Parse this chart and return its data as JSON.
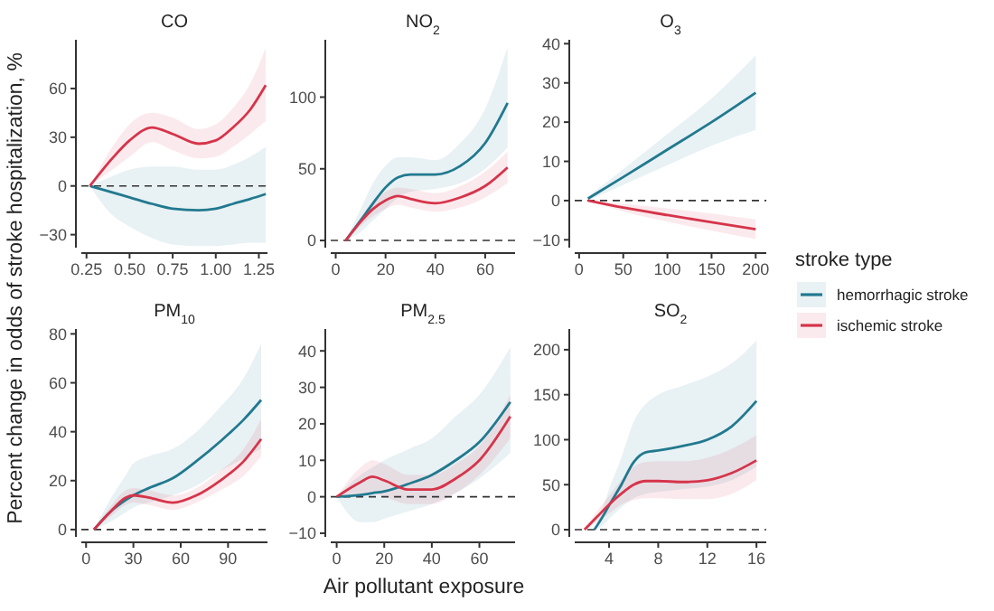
{
  "chart_data": [
    {
      "type": "line",
      "title": "CO",
      "x": [
        0.27,
        0.4,
        0.5,
        0.63,
        0.75,
        0.9,
        1.0,
        1.1,
        1.2,
        1.29
      ],
      "xlim": [
        0.22,
        1.3
      ],
      "ylim": [
        -38,
        90
      ],
      "xticks": [
        {
          "value": 0.25,
          "label": "0.25"
        },
        {
          "value": 0.5,
          "label": "0.50"
        },
        {
          "value": 0.75,
          "label": "0.75"
        },
        {
          "value": 1,
          "label": "1.00"
        },
        {
          "value": 1.25,
          "label": "1.25"
        }
      ],
      "yticks": [
        -30,
        0,
        30,
        60
      ],
      "ref_lines": [
        {
          "axis": "y",
          "value": 0,
          "color": "#333333",
          "line_style": "dashed"
        }
      ],
      "series": [
        {
          "color": "#21798f",
          "values": [
            0,
            -4,
            -7,
            -11,
            -14,
            -15,
            -14,
            -11,
            -8,
            -5
          ],
          "lower": [
            0,
            -18,
            -25,
            -32,
            -36,
            -37,
            -37,
            -36,
            -35,
            -35
          ],
          "upper": [
            0,
            6,
            10,
            12,
            12,
            10,
            10,
            13,
            18,
            24
          ]
        },
        {
          "color": "#d6344a",
          "values": [
            0,
            17,
            28,
            36,
            32,
            26,
            28,
            36,
            47,
            62
          ],
          "lower": [
            0,
            10,
            18,
            27,
            22,
            17,
            18,
            24,
            32,
            40
          ],
          "upper": [
            0,
            24,
            38,
            45,
            42,
            35,
            38,
            48,
            63,
            85
          ]
        }
      ]
    },
    {
      "type": "line",
      "title": "NO$_{2}$",
      "x": [
        4,
        10,
        15,
        20,
        25,
        30,
        40,
        50,
        60,
        69
      ],
      "xlim": [
        -2,
        72
      ],
      "ylim": [
        -5,
        140
      ],
      "xticks": [
        0,
        20,
        40,
        60
      ],
      "yticks": [
        0,
        50,
        100
      ],
      "ref_lines": [
        {
          "axis": "y",
          "value": 0,
          "color": "#333333",
          "line_style": "dashed"
        }
      ],
      "series": [
        {
          "color": "#21798f",
          "values": [
            0,
            14,
            26,
            37,
            44,
            46,
            46,
            52,
            68,
            96
          ],
          "lower": [
            0,
            6,
            14,
            22,
            30,
            34,
            36,
            40,
            50,
            65
          ],
          "upper": [
            0,
            22,
            40,
            52,
            58,
            58,
            56,
            68,
            92,
            135
          ]
        },
        {
          "color": "#d6344a",
          "values": [
            0,
            13,
            22,
            28,
            31,
            29,
            26,
            30,
            38,
            51
          ],
          "lower": [
            0,
            10,
            17,
            22,
            25,
            23,
            20,
            23,
            30,
            40
          ],
          "upper": [
            0,
            16,
            27,
            34,
            37,
            36,
            33,
            38,
            48,
            62
          ]
        }
      ]
    },
    {
      "type": "line",
      "title": "O$_{3}$",
      "x": [
        10,
        50,
        100,
        150,
        200
      ],
      "xlim": [
        -5,
        212
      ],
      "ylim": [
        -12,
        41
      ],
      "xticks": [
        0,
        50,
        100,
        150,
        200
      ],
      "yticks": [
        -10,
        0,
        10,
        20,
        30,
        40
      ],
      "ref_lines": [
        {
          "axis": "y",
          "value": 0,
          "color": "#333333",
          "line_style": "dashed"
        }
      ],
      "legend": "right",
      "legend_title": "stroke type",
      "series": [
        {
          "name": "hemorrhagic stroke",
          "color": "#21798f",
          "values": [
            0.5,
            6,
            13,
            20,
            27.5
          ],
          "lower": [
            0,
            4,
            9,
            14,
            18
          ],
          "upper": [
            1,
            8,
            17,
            26,
            37
          ]
        },
        {
          "name": "ischemic stroke",
          "color": "#d6344a",
          "values": [
            0,
            -1.8,
            -3.7,
            -5.5,
            -7.3
          ],
          "lower": [
            0,
            -2.8,
            -5.4,
            -7.7,
            -9.8
          ],
          "upper": [
            0,
            -0.8,
            -2,
            -3.3,
            -4.8
          ]
        }
      ]
    },
    {
      "type": "line",
      "title": "PM$_{10}$",
      "ylabel": "Percent change in odds of stroke hospitalization, %",
      "x": [
        5,
        15,
        25,
        30,
        40,
        55,
        70,
        85,
        100,
        111
      ],
      "xlim": [
        -3,
        115
      ],
      "ylim": [
        -3,
        82
      ],
      "xticks": [
        0,
        30,
        60,
        90
      ],
      "yticks": [
        0,
        20,
        40,
        60,
        80
      ],
      "ref_lines": [
        {
          "axis": "y",
          "value": 0,
          "color": "#333333",
          "line_style": "dashed"
        }
      ],
      "series": [
        {
          "color": "#21798f",
          "values": [
            0,
            7,
            12,
            14,
            17,
            21,
            28,
            36,
            45,
            53
          ],
          "lower": [
            0,
            3,
            7,
            9,
            11,
            14,
            18,
            24,
            29,
            33
          ],
          "upper": [
            0,
            12,
            22,
            27,
            30,
            33,
            40,
            50,
            62,
            76
          ]
        },
        {
          "color": "#d6344a",
          "values": [
            0,
            7,
            13,
            14,
            13,
            11,
            14,
            20,
            28,
            37
          ],
          "lower": [
            0,
            5,
            10,
            11,
            10,
            8,
            11,
            16,
            22,
            30
          ],
          "upper": [
            0,
            9,
            16,
            17,
            16,
            14,
            17,
            24,
            33,
            45
          ]
        }
      ]
    },
    {
      "type": "line",
      "title": "PM$_{2.5}$",
      "xlabel": "Air pollutant exposure",
      "x": [
        0,
        10,
        15,
        20,
        30,
        40,
        50,
        60,
        73
      ],
      "xlim": [
        -2.5,
        75
      ],
      "ylim": [
        -11,
        46
      ],
      "xticks": [
        0,
        20,
        40,
        60
      ],
      "yticks": [
        -10,
        0,
        10,
        20,
        30,
        40
      ],
      "ref_lines": [
        {
          "axis": "y",
          "value": 0,
          "color": "#333333",
          "line_style": "dashed"
        }
      ],
      "series": [
        {
          "color": "#21798f",
          "values": [
            0,
            0.5,
            1,
            1.5,
            3.5,
            6,
            10,
            15,
            26
          ],
          "lower": [
            0,
            -7,
            -7,
            -6,
            -4,
            -2,
            1,
            5,
            12
          ],
          "upper": [
            0,
            6,
            8,
            10,
            13,
            16,
            22,
            28,
            41
          ]
        },
        {
          "color": "#d6344a",
          "values": [
            0,
            4,
            5.5,
            4.5,
            2,
            2,
            5,
            10,
            22
          ],
          "lower": [
            0,
            0,
            1,
            0,
            -2,
            -2,
            1,
            6,
            16
          ],
          "upper": [
            0,
            8,
            10,
            9,
            6,
            6,
            9,
            14,
            28
          ]
        }
      ]
    },
    {
      "type": "line",
      "title": "SO$_{2}$",
      "xlim": [
        1.2,
        16.8
      ],
      "ylim": [
        -8,
        223
      ],
      "xticks": [
        4,
        8,
        12,
        16
      ],
      "yticks": [
        0,
        50,
        100,
        150,
        200
      ],
      "ref_lines": [
        {
          "axis": "y",
          "value": 0,
          "color": "#333333",
          "line_style": "dashed"
        }
      ],
      "series": [
        {
          "color": "#21798f",
          "x": [
            2.8,
            3.5,
            4,
            5,
            6,
            7,
            8,
            10,
            12,
            14,
            16
          ],
          "values": [
            0,
            15,
            27,
            50,
            75,
            86,
            88,
            93,
            100,
            115,
            143
          ],
          "lower": [
            0,
            5,
            12,
            25,
            35,
            40,
            42,
            45,
            48,
            55,
            70
          ],
          "upper": [
            0,
            25,
            45,
            80,
            120,
            140,
            150,
            160,
            170,
            185,
            210
          ]
        },
        {
          "color": "#d6344a",
          "x": [
            2,
            3,
            4,
            5,
            6,
            7,
            8,
            10,
            12,
            14,
            16
          ],
          "values": [
            0,
            14,
            28,
            40,
            50,
            54,
            54,
            53,
            55,
            63,
            77
          ],
          "lower": [
            0,
            8,
            18,
            28,
            33,
            35,
            35,
            34,
            34,
            40,
            55
          ],
          "upper": [
            0,
            20,
            38,
            55,
            70,
            75,
            76,
            76,
            80,
            90,
            105
          ]
        }
      ]
    }
  ]
}
